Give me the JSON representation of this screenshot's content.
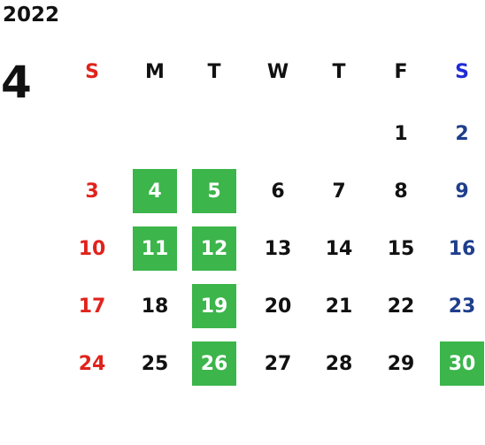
{
  "calendar": {
    "year": "2022",
    "month": "4",
    "weekdays": [
      "S",
      "M",
      "T",
      "W",
      "T",
      "F",
      "S"
    ],
    "weeks": [
      [
        "",
        "",
        "",
        "",
        "",
        "1",
        "2"
      ],
      [
        "3",
        "4",
        "5",
        "6",
        "7",
        "8",
        "9"
      ],
      [
        "10",
        "11",
        "12",
        "13",
        "14",
        "15",
        "16"
      ],
      [
        "17",
        "18",
        "19",
        "20",
        "21",
        "22",
        "23"
      ],
      [
        "24",
        "25",
        "26",
        "27",
        "28",
        "29",
        "30"
      ]
    ],
    "highlighted_days": [
      "4",
      "5",
      "11",
      "12",
      "19",
      "26",
      "30"
    ]
  },
  "colors": {
    "sunday": "#e0231c",
    "saturday_header": "#1f2bd6",
    "saturday": "#1f3e8c",
    "weekday": "#111111",
    "highlight_bg": "#3cb54b",
    "highlight_text": "#ffffff"
  }
}
